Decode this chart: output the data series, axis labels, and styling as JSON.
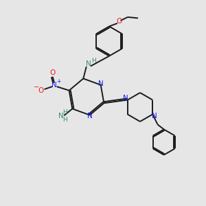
{
  "bg_color": "#e6e6e6",
  "bond_color": "#1a1a1a",
  "N_color": "#1a1aee",
  "O_color": "#ee1a1a",
  "NH_color": "#3a8a7a",
  "figsize": [
    3.0,
    3.0
  ],
  "dpi": 100,
  "xlim": [
    0,
    10
  ],
  "ylim": [
    0,
    10
  ]
}
